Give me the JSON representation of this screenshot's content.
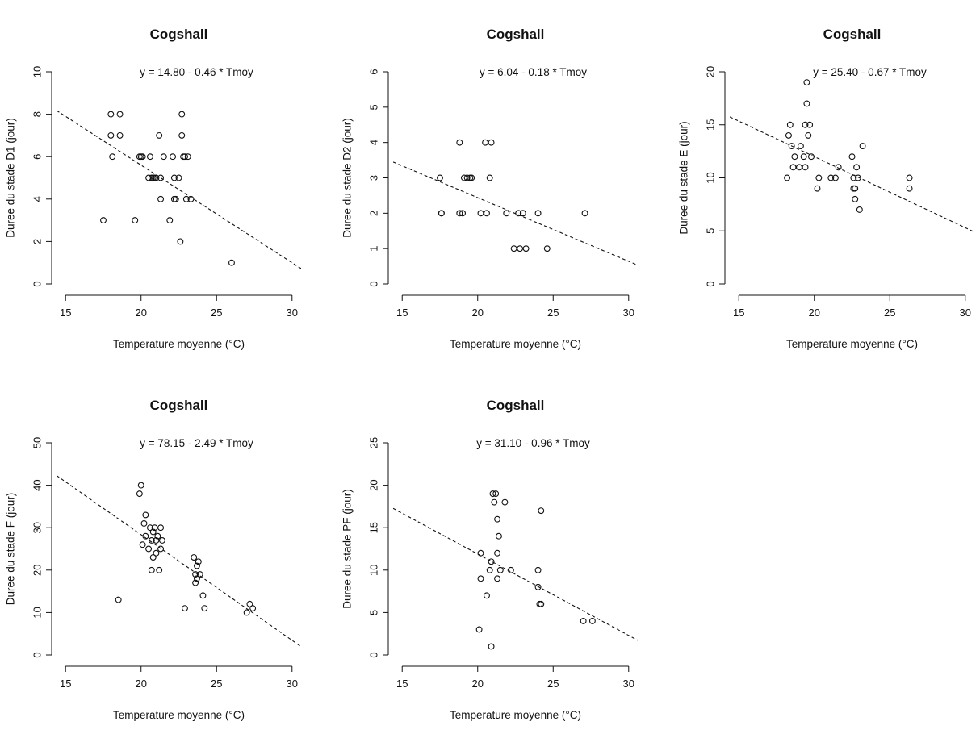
{
  "chart_data": [
    {
      "type": "scatter",
      "title": "Cogshall",
      "equation": "y = 14.80 - 0.46 * Tmoy",
      "xlabel": "Temperature moyenne (°C)",
      "ylabel": "Duree du stade D1 (jour)",
      "xlim": [
        14.4,
        30.6
      ],
      "ylim": [
        0,
        10
      ],
      "xticks": [
        15,
        20,
        25,
        30
      ],
      "yticks": [
        0,
        2,
        4,
        6,
        8,
        10
      ],
      "regression": {
        "intercept": 14.8,
        "slope": -0.46
      },
      "grid": false,
      "x": [
        17.5,
        18.0,
        18.0,
        18.1,
        18.6,
        18.6,
        19.6,
        19.9,
        20.0,
        20.1,
        20.5,
        20.6,
        20.7,
        20.8,
        20.9,
        21.0,
        21.2,
        21.3,
        21.3,
        21.5,
        21.9,
        22.1,
        22.2,
        22.2,
        22.3,
        22.5,
        22.6,
        22.7,
        22.7,
        22.8,
        22.9,
        23.0,
        23.1,
        23.3,
        26.0
      ],
      "y": [
        3,
        7,
        8,
        6,
        8,
        7,
        3,
        6,
        6,
        6,
        5,
        6,
        5,
        5,
        5,
        5,
        7,
        4,
        5,
        6,
        3,
        6,
        5,
        4,
        4,
        5,
        2,
        7,
        8,
        6,
        6,
        4,
        6,
        4,
        1
      ]
    },
    {
      "type": "scatter",
      "title": "Cogshall",
      "equation": "y = 6.04 - 0.18 * Tmoy",
      "xlabel": "Temperature moyenne (°C)",
      "ylabel": "Duree du stade D2 (jour)",
      "xlim": [
        14.4,
        30.6
      ],
      "ylim": [
        0,
        6
      ],
      "xticks": [
        15,
        20,
        25,
        30
      ],
      "yticks": [
        0,
        1,
        2,
        3,
        4,
        5,
        6
      ],
      "regression": {
        "intercept": 6.04,
        "slope": -0.18
      },
      "grid": false,
      "x": [
        17.5,
        17.6,
        17.6,
        18.8,
        18.8,
        19.0,
        19.1,
        19.3,
        19.5,
        19.6,
        20.2,
        20.5,
        20.6,
        20.8,
        20.9,
        21.9,
        22.4,
        22.7,
        22.8,
        23.0,
        23.0,
        23.2,
        24.0,
        24.6,
        27.1
      ],
      "y": [
        3,
        2,
        2,
        4,
        2,
        2,
        3,
        3,
        3,
        3,
        2,
        4,
        2,
        3,
        4,
        2,
        1,
        2,
        1,
        2,
        2,
        1,
        2,
        1,
        2
      ]
    },
    {
      "type": "scatter",
      "title": "Cogshall",
      "equation": "y = 25.40 - 0.67 * Tmoy",
      "xlabel": "Temperature moyenne (°C)",
      "ylabel": "Duree du stade E (jour)",
      "xlim": [
        14.4,
        30.6
      ],
      "ylim": [
        0,
        20
      ],
      "xticks": [
        15,
        20,
        25,
        30
      ],
      "yticks": [
        0,
        5,
        10,
        15,
        20
      ],
      "regression": {
        "intercept": 25.4,
        "slope": -0.67
      },
      "grid": false,
      "x": [
        18.2,
        18.3,
        18.4,
        18.5,
        18.6,
        18.7,
        19.0,
        19.1,
        19.3,
        19.4,
        19.4,
        19.5,
        19.5,
        19.6,
        19.7,
        19.8,
        20.2,
        20.3,
        21.1,
        21.4,
        21.6,
        22.5,
        22.6,
        22.6,
        22.7,
        22.7,
        22.8,
        22.9,
        23.0,
        23.2,
        26.3,
        26.3
      ],
      "y": [
        10,
        14,
        15,
        13,
        11,
        12,
        11,
        13,
        12,
        15,
        11,
        19,
        17,
        14,
        15,
        12,
        9,
        10,
        10,
        10,
        11,
        12,
        10,
        9,
        8,
        9,
        11,
        10,
        7,
        13,
        10,
        9
      ]
    },
    {
      "type": "scatter",
      "title": "Cogshall",
      "equation": "y = 78.15 - 2.49 * Tmoy",
      "xlabel": "Temperature moyenne (°C)",
      "ylabel": "Duree du stade F (jour)",
      "xlim": [
        14.4,
        30.6
      ],
      "ylim": [
        0,
        50
      ],
      "xticks": [
        15,
        20,
        25,
        30
      ],
      "yticks": [
        0,
        10,
        20,
        30,
        40,
        50
      ],
      "regression": {
        "intercept": 78.15,
        "slope": -2.49
      },
      "grid": false,
      "x": [
        18.5,
        19.9,
        20.0,
        20.1,
        20.2,
        20.3,
        20.3,
        20.5,
        20.6,
        20.7,
        20.7,
        20.8,
        20.8,
        20.9,
        21.0,
        21.0,
        21.1,
        21.2,
        21.3,
        21.3,
        21.4,
        22.9,
        23.5,
        23.6,
        23.6,
        23.7,
        23.7,
        23.8,
        23.9,
        24.1,
        24.2,
        27.0,
        27.2,
        27.4
      ],
      "y": [
        13,
        38,
        40,
        26,
        31,
        33,
        28,
        25,
        30,
        27,
        20,
        29,
        23,
        30,
        27,
        24,
        28,
        20,
        25,
        30,
        27,
        11,
        23,
        19,
        17,
        21,
        18,
        22,
        19,
        14,
        11,
        10,
        12,
        11
      ]
    },
    {
      "type": "scatter",
      "title": "Cogshall",
      "equation": "y = 31.10 - 0.96 * Tmoy",
      "xlabel": "Temperature moyenne (°C)",
      "ylabel": "Duree du stade PF (jour)",
      "xlim": [
        14.4,
        30.6
      ],
      "ylim": [
        0,
        25
      ],
      "xticks": [
        15,
        20,
        25,
        30
      ],
      "yticks": [
        0,
        5,
        10,
        15,
        20,
        25
      ],
      "regression": {
        "intercept": 31.1,
        "slope": -0.96
      },
      "grid": false,
      "x": [
        20.1,
        20.2,
        20.2,
        20.6,
        20.8,
        20.9,
        20.9,
        21.0,
        21.1,
        21.2,
        21.3,
        21.3,
        21.3,
        21.4,
        21.5,
        21.8,
        22.2,
        24.0,
        24.0,
        24.1,
        24.2,
        24.2,
        27.0,
        27.6
      ],
      "y": [
        3,
        9,
        12,
        7,
        10,
        11,
        1,
        19,
        18,
        19,
        16,
        12,
        9,
        14,
        10,
        18,
        10,
        8,
        10,
        6,
        17,
        6,
        4,
        4
      ]
    }
  ]
}
